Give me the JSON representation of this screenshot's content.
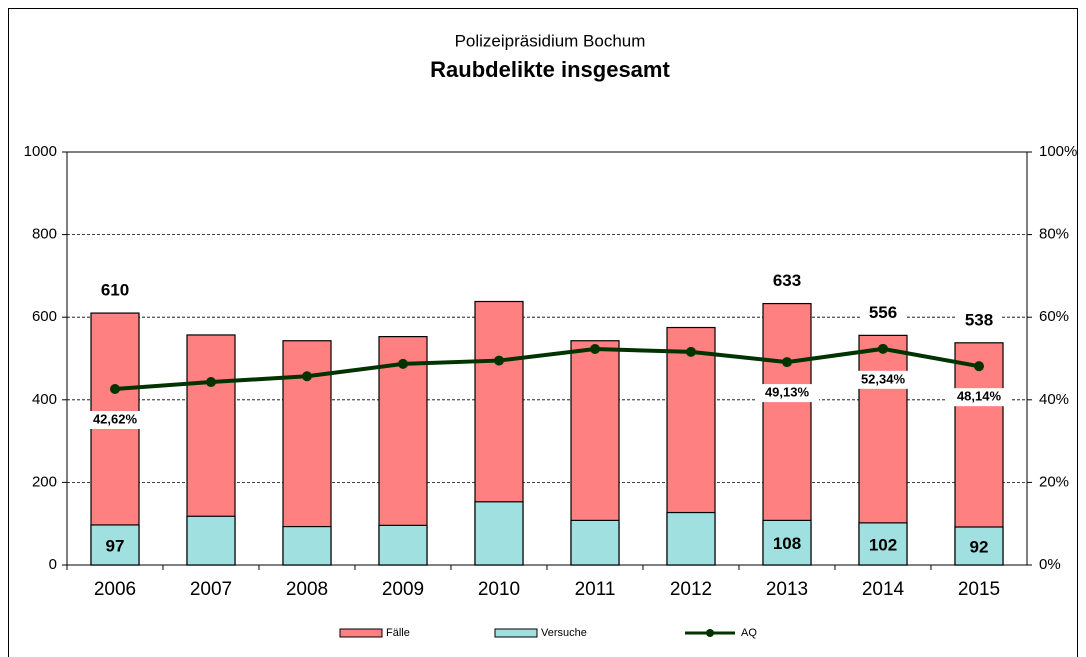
{
  "chart_data": {
    "type": "bar",
    "title": "Raubdelikte insgesamt",
    "subtitle": "Polizeipräsidium Bochum",
    "categories": [
      "2006",
      "2007",
      "2008",
      "2009",
      "2010",
      "2011",
      "2012",
      "2013",
      "2014",
      "2015"
    ],
    "series": [
      {
        "name": "Fälle",
        "color": "#ff8080",
        "values": [
          610,
          557,
          543,
          553,
          638,
          543,
          575,
          633,
          556,
          538
        ],
        "value_labels": [
          "610",
          null,
          null,
          null,
          null,
          null,
          null,
          "633",
          "556",
          "538"
        ]
      },
      {
        "name": "Versuche",
        "color": "#a0e0e0",
        "values": [
          97,
          118,
          93,
          96,
          153,
          108,
          127,
          108,
          102,
          92
        ],
        "value_labels": [
          "97",
          null,
          null,
          null,
          null,
          null,
          null,
          "108",
          "102",
          "92"
        ]
      },
      {
        "name": "AQ",
        "type": "line",
        "axis": "y2",
        "color": "#003300",
        "values": [
          42.62,
          44.3,
          45.7,
          48.7,
          49.5,
          52.3,
          51.6,
          49.13,
          52.34,
          48.14
        ],
        "value_labels": [
          "42,62%",
          null,
          null,
          null,
          null,
          null,
          null,
          "49,13%",
          "52,34%",
          "48,14%"
        ]
      }
    ],
    "ylim": [
      0,
      1000
    ],
    "yticks": [
      0,
      200,
      400,
      600,
      800,
      1000
    ],
    "y2lim": [
      0,
      100
    ],
    "y2ticks": [
      {
        "value": 0,
        "label": "0%"
      },
      {
        "value": 20,
        "label": "20%"
      },
      {
        "value": 40,
        "label": "40%"
      },
      {
        "value": 60,
        "label": "60%"
      },
      {
        "value": 80,
        "label": "80%"
      },
      {
        "value": 100,
        "label": "100%"
      }
    ],
    "grid": true,
    "legend": "bottom"
  }
}
